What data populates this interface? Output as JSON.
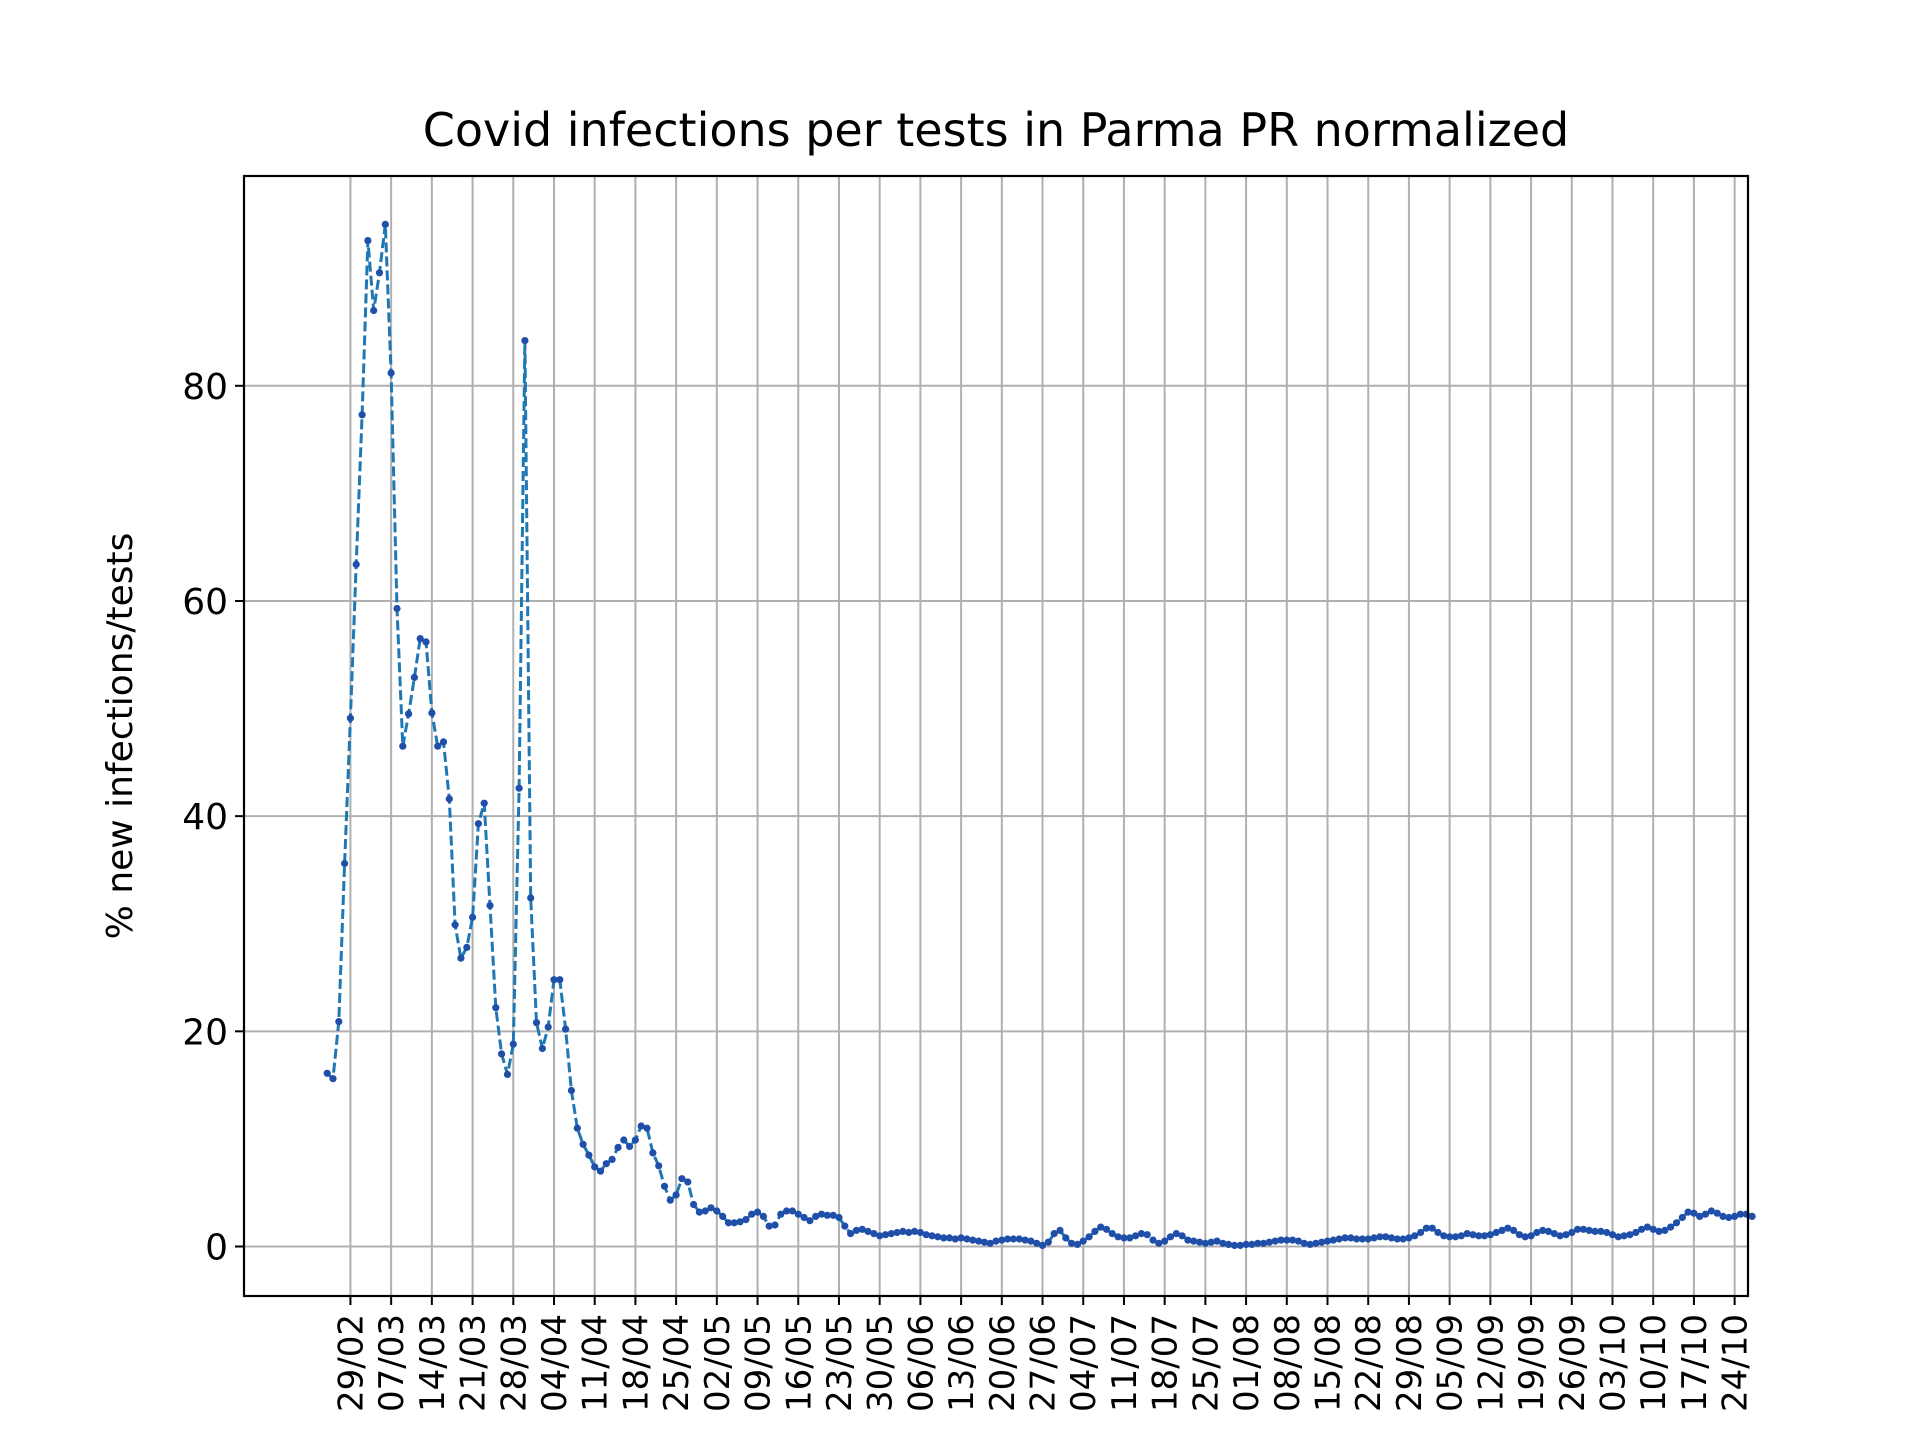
{
  "chart_data": {
    "type": "line",
    "title": "Covid infections per tests in Parma PR normalized",
    "xlabel": "",
    "ylabel": "% new infections/tests",
    "ylim": [
      -4.6,
      99.5
    ],
    "yticks": [
      0,
      20,
      40,
      60,
      80
    ],
    "x_start": "2020-02-25",
    "x_end": "2020-10-24",
    "xticks": [
      "29/02",
      "07/03",
      "14/03",
      "21/03",
      "28/03",
      "04/04",
      "11/04",
      "18/04",
      "25/04",
      "02/05",
      "09/05",
      "16/05",
      "23/05",
      "30/05",
      "06/06",
      "13/06",
      "20/06",
      "27/06",
      "04/07",
      "11/07",
      "18/07",
      "25/07",
      "01/08",
      "08/08",
      "15/08",
      "22/08",
      "29/08",
      "05/09",
      "12/09",
      "19/09",
      "26/09",
      "03/10",
      "10/10",
      "17/10",
      "24/10"
    ],
    "grid": true,
    "line_color": "#1f77b4",
    "line_style": "dashed",
    "marker_color": "#1f4fa8",
    "values": [
      16.1,
      15.6,
      20.9,
      35.6,
      49.1,
      63.4,
      77.3,
      93.5,
      87.0,
      90.5,
      95.0,
      81.2,
      59.3,
      46.5,
      49.5,
      52.9,
      56.5,
      56.2,
      49.6,
      46.5,
      46.9,
      41.6,
      29.9,
      26.8,
      27.8,
      30.6,
      39.3,
      41.2,
      31.7,
      22.2,
      17.9,
      16.0,
      18.8,
      42.6,
      84.2,
      32.4,
      20.8,
      18.4,
      20.4,
      24.8,
      24.8,
      20.2,
      14.5,
      11.0,
      9.5,
      8.5,
      7.4,
      7.0,
      7.7,
      8.1,
      9.2,
      9.9,
      9.3,
      9.9,
      11.2,
      11.0,
      8.7,
      7.5,
      5.6,
      4.3,
      4.8,
      6.3,
      6.0,
      3.9,
      3.2,
      3.3,
      3.6,
      3.3,
      2.8,
      2.2,
      2.2,
      2.3,
      2.5,
      3.0,
      3.2,
      2.8,
      1.9,
      2.0,
      3.0,
      3.3,
      3.3,
      3.0,
      2.7,
      2.4,
      2.8,
      3.0,
      2.9,
      2.9,
      2.7,
      1.9,
      1.2,
      1.5,
      1.6,
      1.4,
      1.2,
      1.0,
      1.1,
      1.2,
      1.3,
      1.4,
      1.3,
      1.4,
      1.3,
      1.1,
      1.0,
      0.9,
      0.8,
      0.8,
      0.7,
      0.8,
      0.7,
      0.6,
      0.5,
      0.4,
      0.3,
      0.5,
      0.6,
      0.7,
      0.7,
      0.7,
      0.6,
      0.5,
      0.3,
      0.1,
      0.4,
      1.2,
      1.5,
      0.8,
      0.3,
      0.2,
      0.5,
      0.9,
      1.4,
      1.8,
      1.6,
      1.2,
      0.9,
      0.8,
      0.8,
      1.0,
      1.2,
      1.1,
      0.6,
      0.3,
      0.5,
      0.9,
      1.2,
      1.0,
      0.6,
      0.5,
      0.4,
      0.3,
      0.4,
      0.5,
      0.3,
      0.2,
      0.1,
      0.1,
      0.2,
      0.2,
      0.3,
      0.3,
      0.4,
      0.5,
      0.6,
      0.6,
      0.6,
      0.5,
      0.3,
      0.2,
      0.3,
      0.4,
      0.5,
      0.6,
      0.7,
      0.8,
      0.8,
      0.7,
      0.7,
      0.7,
      0.8,
      0.9,
      0.9,
      0.8,
      0.7,
      0.7,
      0.8,
      1.0,
      1.3,
      1.7,
      1.7,
      1.3,
      1.0,
      0.9,
      0.9,
      1.0,
      1.2,
      1.1,
      1.0,
      1.0,
      1.1,
      1.3,
      1.5,
      1.7,
      1.5,
      1.1,
      0.9,
      1.0,
      1.3,
      1.5,
      1.4,
      1.2,
      1.0,
      1.1,
      1.3,
      1.6,
      1.6,
      1.5,
      1.4,
      1.4,
      1.3,
      1.1,
      0.9,
      1.0,
      1.1,
      1.3,
      1.6,
      1.8,
      1.6,
      1.4,
      1.5,
      1.8,
      2.2,
      2.7,
      3.2,
      3.1,
      2.8,
      3.0,
      3.3,
      3.1,
      2.8,
      2.7,
      2.8,
      3.0,
      3.0,
      2.8
    ]
  }
}
